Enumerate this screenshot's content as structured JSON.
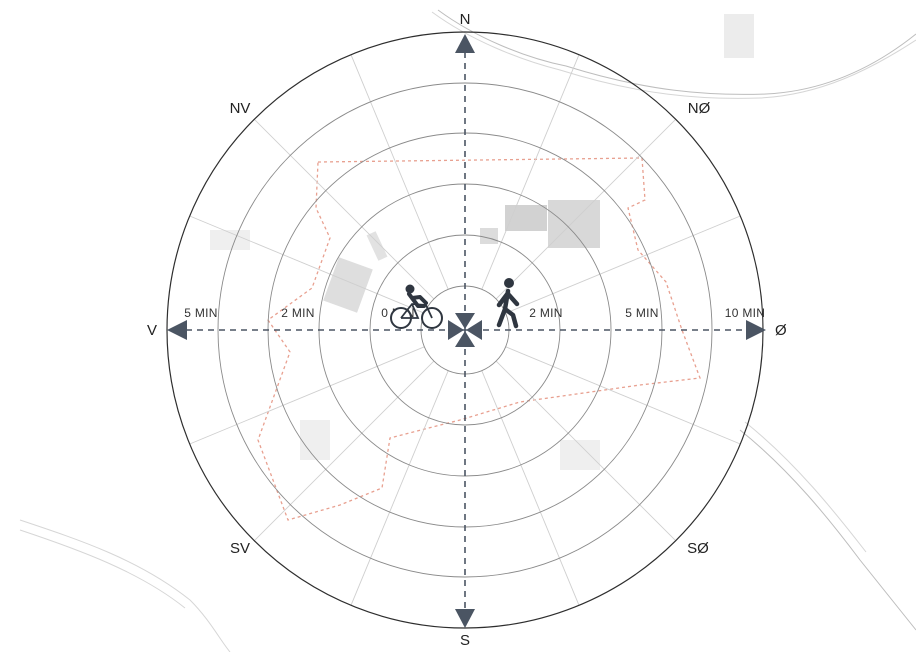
{
  "directions": {
    "n": "N",
    "s": "S",
    "e": "Ø",
    "w": "V",
    "ne": "NØ",
    "nw": "NV",
    "se": "SØ",
    "sw": "SV"
  },
  "scale_left": [
    "5 MIN",
    "2 MIN",
    "0 MIN"
  ],
  "scale_right": [
    "2 MIN",
    "5 MIN",
    "10 MIN"
  ],
  "icons": {
    "left": "bicycle-icon",
    "right": "pedestrian-icon"
  },
  "colors": {
    "rings": "#3a3a3a",
    "axis": "#4b5563",
    "boundary": "#e8a090",
    "map": "#d9d9d9"
  }
}
